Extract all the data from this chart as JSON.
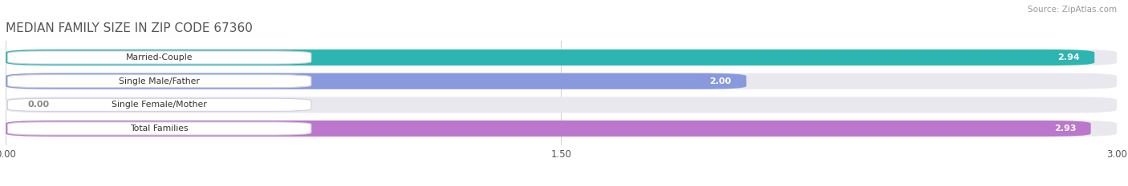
{
  "title": "MEDIAN FAMILY SIZE IN ZIP CODE 67360",
  "source": "Source: ZipAtlas.com",
  "categories": [
    "Married-Couple",
    "Single Male/Father",
    "Single Female/Mother",
    "Total Families"
  ],
  "values": [
    2.94,
    2.0,
    0.0,
    2.93
  ],
  "bar_colors": [
    "#2db5b2",
    "#8899dd",
    "#f599aa",
    "#bb77cc"
  ],
  "bar_bg_color": "#e8e8ee",
  "xlim": [
    0,
    3.0
  ],
  "xticks": [
    0.0,
    1.5,
    3.0
  ],
  "xtick_labels": [
    "0.00",
    "1.50",
    "3.00"
  ],
  "figsize": [
    14.06,
    2.33
  ],
  "dpi": 100
}
